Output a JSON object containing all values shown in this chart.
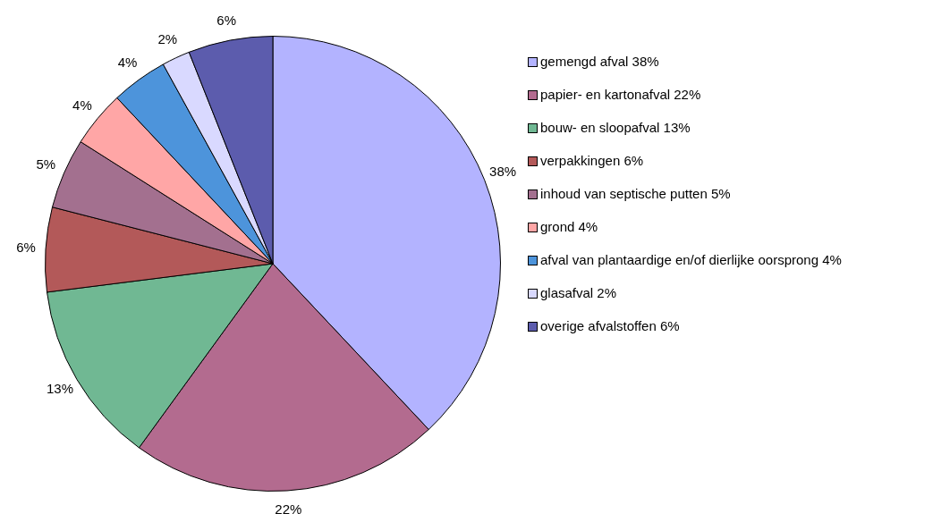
{
  "chart_data": {
    "type": "pie",
    "categories": [
      "gemengd afval 38%",
      "papier- en kartonafval 22%",
      "bouw- en sloopafval 13%",
      "verpakkingen 6%",
      "inhoud van septische putten 5%",
      "grond 4%",
      "afval van plantaardige en/of dierlijke oorsprong 4%",
      "glasafval 2%",
      "overige afvalstoffen 6%"
    ],
    "values": [
      38,
      22,
      13,
      6,
      5,
      4,
      4,
      2,
      6
    ],
    "value_labels": [
      "38%",
      "22%",
      "13%",
      "6%",
      "5%",
      "4%",
      "4%",
      "2%",
      "6%"
    ],
    "colors": [
      "#b3b3ff",
      "#b36b8f",
      "#70b893",
      "#b35959",
      "#a3708f",
      "#ffa6a6",
      "#4d94db",
      "#d9d9ff",
      "#5c5cad"
    ],
    "legend": "right"
  }
}
